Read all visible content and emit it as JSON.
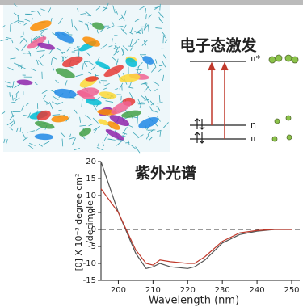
{
  "diagram": {
    "title": "电子态激发",
    "levels": [
      "π*",
      "n",
      "π"
    ]
  },
  "chart_data": {
    "type": "line",
    "title": "紫外光谱",
    "x_label": "Wavelength (nm)",
    "y_label": [
      "[θ] X 10⁻³ degree cm²",
      "/decimole"
    ],
    "x": [
      195,
      200,
      205,
      208,
      210,
      212,
      215,
      220,
      222,
      225,
      230,
      235,
      240,
      245,
      250
    ],
    "series": [
      {
        "color": "#555555",
        "values": [
          20,
          5,
          -7,
          -11.5,
          -11,
          -10,
          -11,
          -11.5,
          -11,
          -9,
          -4,
          -1.5,
          -0.5,
          0,
          0
        ]
      },
      {
        "color": "#c0392b",
        "values": [
          12,
          5,
          -6,
          -10,
          -10.5,
          -9,
          -9.5,
          -10,
          -10,
          -8,
          -3.5,
          -1,
          -0.3,
          0,
          0
        ]
      }
    ],
    "xlim": [
      195,
      250
    ],
    "xticks": [
      200,
      210,
      220,
      230,
      240,
      250
    ],
    "ylim": [
      -15,
      20
    ],
    "yticks": [
      -15,
      -10,
      -5,
      0,
      5,
      10,
      15,
      20
    ],
    "zero_line": true
  }
}
